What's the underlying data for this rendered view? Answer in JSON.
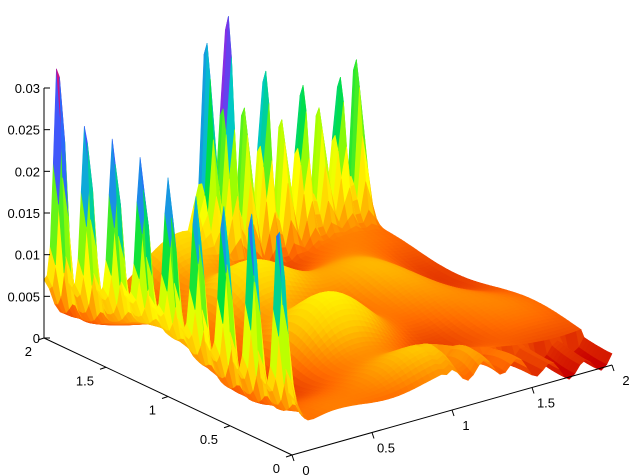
{
  "chart_data": {
    "type": "surface-3d",
    "title": "",
    "xlabel": "",
    "ylabel": "",
    "zlabel": "",
    "x_range": [
      0,
      2
    ],
    "y_range": [
      0,
      2
    ],
    "z_range": [
      0,
      0.03
    ],
    "grid": false,
    "x_ticks": [
      "0",
      "0.5",
      "1",
      "1.5",
      "2"
    ],
    "y_ticks": [
      "0",
      "0.5",
      "1",
      "1.5",
      "2"
    ],
    "z_ticks": [
      "0",
      "0.005",
      "0.01",
      "0.015",
      "0.02",
      "0.025",
      "0.03"
    ],
    "front_edge_peaks": {
      "axis": "y",
      "count": 9,
      "heights": [
        0.0275,
        0.0205,
        0.019,
        0.0175,
        0.017,
        0.0175,
        0.019,
        0.0205,
        0.0205
      ]
    },
    "right_edge_peaks": {
      "axis": "x",
      "count": 9,
      "heights": [
        0.022,
        0.027,
        0.016,
        0.021,
        0.014,
        0.017,
        0.013,
        0.016,
        0.018
      ]
    },
    "colormap": [
      "#c80000",
      "#ff6a00",
      "#ffc800",
      "#ffff00",
      "#a0ff00",
      "#00e040",
      "#00c8c8",
      "#3060ff",
      "#8a2be2",
      "#ff0040"
    ]
  }
}
